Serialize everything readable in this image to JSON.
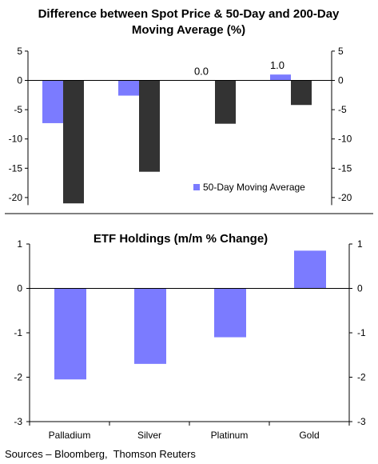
{
  "chart_data": [
    {
      "type": "bar",
      "title_line1": "Difference between Spot Price & 50-Day and 200-Day",
      "title_line2": "Moving Average (%)",
      "categories": [
        "Palladium",
        "Silver",
        "Platinum",
        "Gold"
      ],
      "series": [
        {
          "name": "50-Day Moving Average",
          "values": [
            -7.3,
            -2.6,
            0.0,
            1.0
          ]
        },
        {
          "values": [
            -21.0,
            -15.6,
            -7.4,
            -4.2
          ]
        }
      ],
      "data_labels": [
        {
          "series": 0,
          "category": 2,
          "text": "0.0"
        },
        {
          "series": 0,
          "category": 3,
          "text": "1.0"
        }
      ],
      "ylim": [
        -20,
        5
      ],
      "yticks": [
        "5",
        "0",
        "-5",
        "-10",
        "-15",
        "-20"
      ],
      "legend": "bottom-right",
      "colors": {
        "series0": "#7b7bff",
        "series1": "#333333"
      }
    },
    {
      "type": "bar",
      "title": "ETF Holdings (m/m % Change)",
      "categories": [
        "Palladium",
        "Silver",
        "Platinum",
        "Gold"
      ],
      "values": [
        -2.05,
        -1.7,
        -1.1,
        0.85
      ],
      "ylim": [
        -3,
        1
      ],
      "yticks": [
        "1",
        "0",
        "-1",
        "-2",
        "-3"
      ],
      "colors": {
        "bar": "#7b7bff"
      }
    }
  ],
  "footer": {
    "source": "Sources – Bloomberg,  Thomson Reuters"
  }
}
